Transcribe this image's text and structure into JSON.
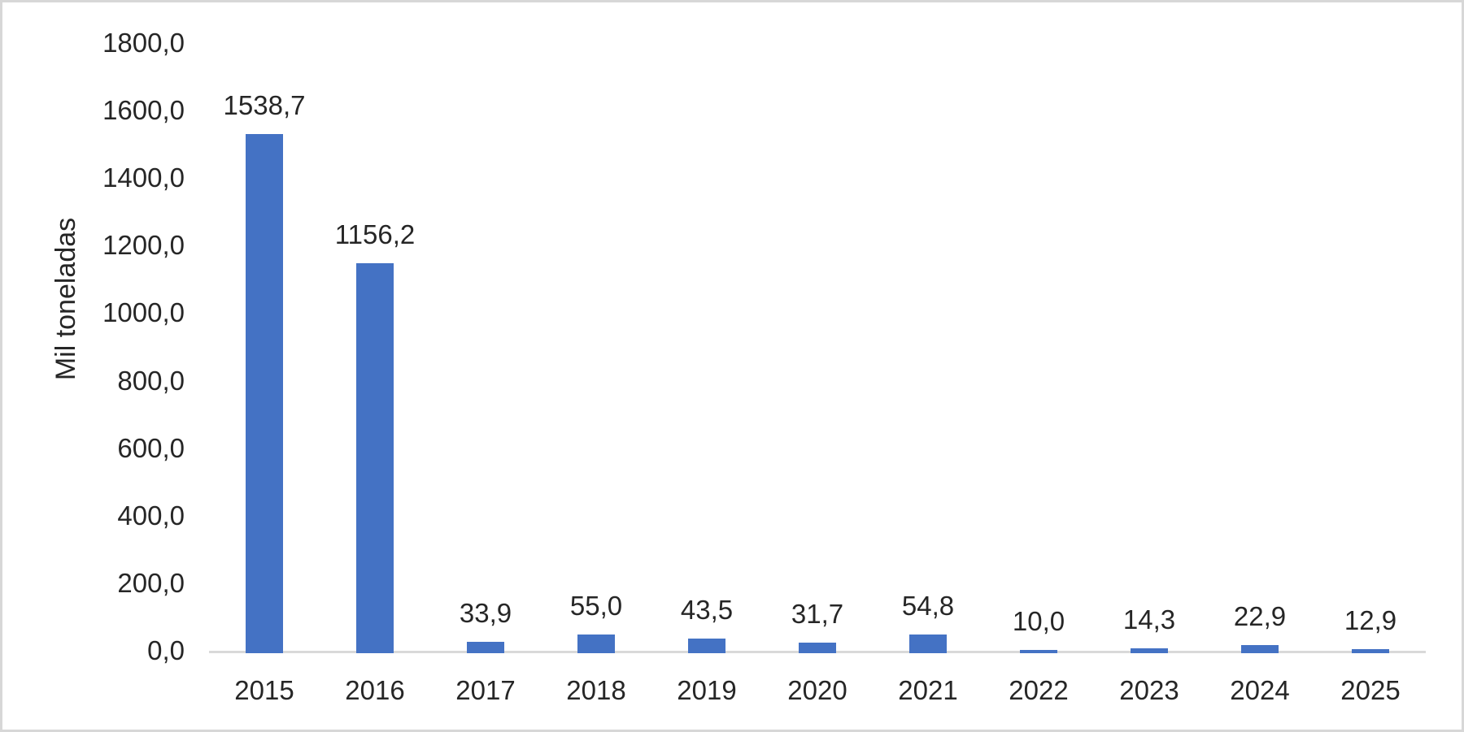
{
  "chart_data": {
    "type": "bar",
    "title": "",
    "xlabel": "",
    "ylabel": "Mil toneladas",
    "categories": [
      "2015",
      "2016",
      "2017",
      "2018",
      "2019",
      "2020",
      "2021",
      "2022",
      "2023",
      "2024",
      "2025"
    ],
    "values": [
      1538.7,
      1156.2,
      33.9,
      55.0,
      43.5,
      31.7,
      54.8,
      10.0,
      14.3,
      22.9,
      12.9
    ],
    "value_labels": [
      "1538,7",
      "1156,2",
      "33,9",
      "55,0",
      "43,5",
      "31,7",
      "54,8",
      "10,0",
      "14,3",
      "22,9",
      "12,9"
    ],
    "ylim": [
      0,
      1800
    ],
    "ytick_step": 200,
    "ytick_labels": [
      "0,0",
      "200,0",
      "400,0",
      "600,0",
      "800,0",
      "1000,0",
      "1200,0",
      "1400,0",
      "1600,0",
      "1800,0"
    ],
    "grid": false,
    "legend_position": "none",
    "decimal_separator": ",",
    "colors": {
      "bar": "#4472C4",
      "axis_line": "#D9D9D9",
      "text": "#262626",
      "border": "#D7D7D7",
      "background": "#FFFFFF"
    }
  }
}
